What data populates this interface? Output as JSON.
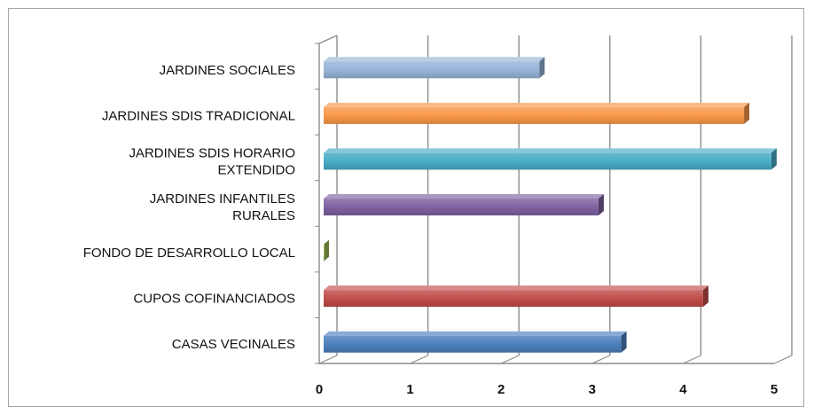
{
  "chart_data": {
    "type": "bar",
    "orientation": "horizontal",
    "style": "3d",
    "categories": [
      "CASAS VECINALES",
      "CUPOS COFINANCIADOS",
      "FONDO DE DESARROLLO LOCAL",
      "JARDINES INFANTILES RURALES",
      "JARDINES SDIS HORARIO EXTENDIDO",
      "JARDINES SDIS TRADICIONAL",
      "JARDINES SOCIALES"
    ],
    "category_lines": [
      [
        "CASAS VECINALES"
      ],
      [
        "CUPOS COFINANCIADOS"
      ],
      [
        "FONDO DE DESARROLLO LOCAL"
      ],
      [
        "JARDINES INFANTILES",
        "RURALES"
      ],
      [
        "JARDINES SDIS HORARIO",
        "EXTENDIDO"
      ],
      [
        "JARDINES SDIS TRADICIONAL"
      ],
      [
        "JARDINES SOCIALES"
      ]
    ],
    "values": [
      3.3,
      4.2,
      0.03,
      3.05,
      4.95,
      4.65,
      2.4
    ],
    "colors": [
      "#4a7ebb",
      "#be4b48",
      "#98b954",
      "#7d60a0",
      "#46aac5",
      "#f79646",
      "#95b3d7"
    ],
    "xlim": [
      0,
      5
    ],
    "xticks": [
      "0",
      "1",
      "2",
      "3",
      "4",
      "5"
    ],
    "grid": true,
    "legend": "none",
    "title": "",
    "xlabel": "",
    "ylabel": ""
  }
}
